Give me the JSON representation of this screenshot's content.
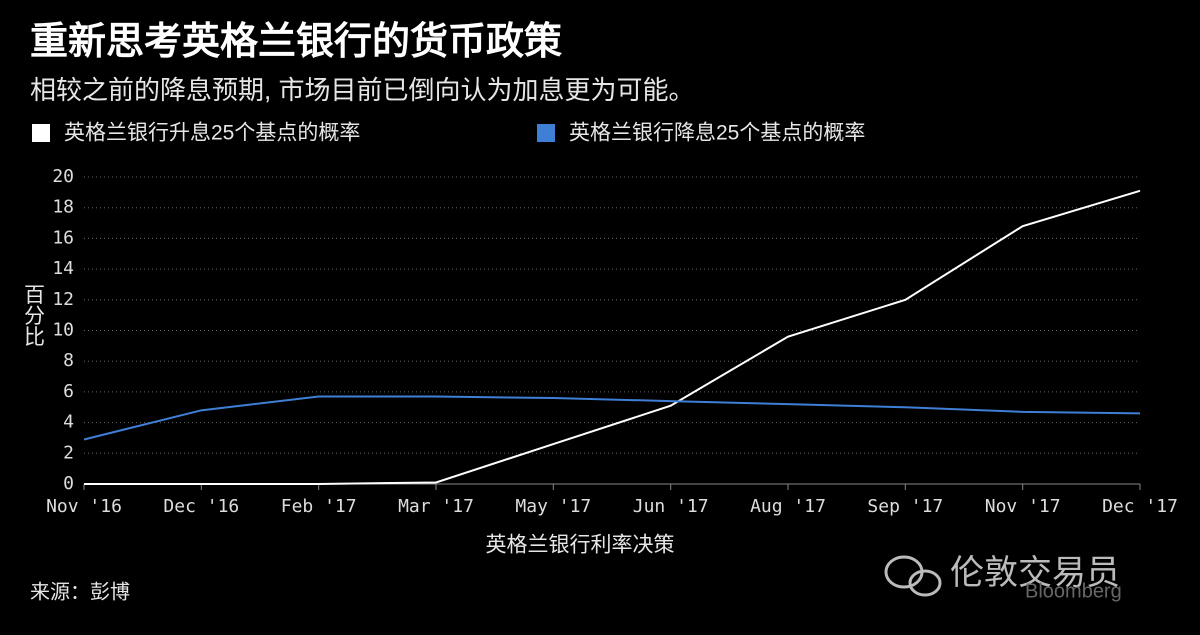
{
  "chart_data": {
    "type": "line",
    "title": "重新思考英格兰银行的货币政策",
    "subtitle": "相较之前的降息预期, 市场目前已倒向认为加息更为可能。",
    "x_label": "英格兰银行利率决策",
    "y_label": "百分比",
    "source": "来源：彭博",
    "annotations": [
      "伦敦交易员",
      "Bloomberg"
    ],
    "categories": [
      "Nov '16",
      "Dec '16",
      "Feb '17",
      "Mar '17",
      "May '17",
      "Jun '17",
      "Aug '17",
      "Sep '17",
      "Nov '17",
      "Dec '17"
    ],
    "series": [
      {
        "name": "英格兰银行升息25个基点的概率",
        "color": "#ffffff",
        "values": [
          0,
          0,
          0,
          0.1,
          2.6,
          5.1,
          9.6,
          12,
          16.8,
          19.1
        ]
      },
      {
        "name": "英格兰银行降息25个基点的概率",
        "color": "#3f7fd6",
        "values": [
          2.9,
          4.8,
          5.7,
          5.7,
          5.6,
          5.4,
          5.2,
          5.0,
          4.7,
          4.6
        ]
      }
    ],
    "ylim": [
      0,
      20
    ],
    "yticks": [
      0,
      2,
      4,
      6,
      8,
      10,
      12,
      14,
      16,
      18,
      20
    ],
    "grid": true
  }
}
